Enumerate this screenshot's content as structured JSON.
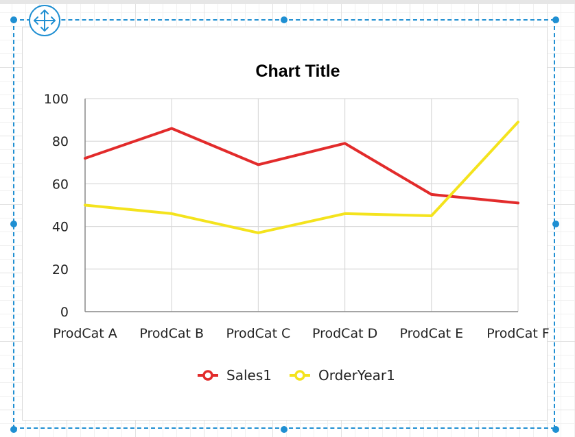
{
  "chart_data": {
    "type": "line",
    "title": "Chart Title",
    "categories": [
      "ProdCat A",
      "ProdCat B",
      "ProdCat C",
      "ProdCat D",
      "ProdCat E",
      "ProdCat F"
    ],
    "series": [
      {
        "name": "Sales1",
        "values": [
          72,
          86,
          69,
          79,
          55,
          51
        ],
        "color": "#e22b2b"
      },
      {
        "name": "OrderYear1",
        "values": [
          50,
          46,
          37,
          46,
          45,
          89
        ],
        "color": "#f4e31d"
      }
    ],
    "ylim": [
      0,
      100
    ],
    "yticks": [
      "0",
      "20",
      "40",
      "60",
      "80",
      "100"
    ],
    "xlabel": "",
    "ylabel": "",
    "grid": true,
    "legend_position": "bottom"
  },
  "designer": {
    "selection_color": "#1f8fd2",
    "move_icon": "move-arrows-icon"
  }
}
